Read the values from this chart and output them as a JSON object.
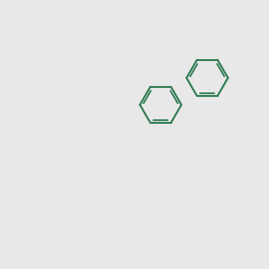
{
  "bg_color": "#e8e8e8",
  "bond_color": "#2d7a50",
  "N_color": "#0000cc",
  "O_color": "#cc0000",
  "S_color": "#aaaa00",
  "Cl_color": "#00aa00",
  "text_color_C": "#2d7a50",
  "figsize": [
    3.0,
    3.0
  ],
  "dpi": 100,
  "lw": 1.5,
  "lw2": 1.3
}
